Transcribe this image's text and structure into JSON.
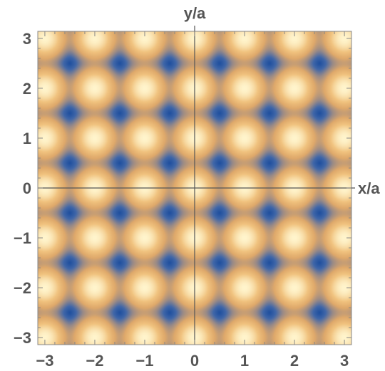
{
  "chart_data": {
    "type": "heatmap",
    "title": "",
    "xlabel": "x/a",
    "ylabel": "y/a",
    "xlim": [
      -3.14159,
      3.14159
    ],
    "ylim": [
      -3.14159,
      3.14159
    ],
    "x_ticks": [
      -3,
      -2,
      -1,
      0,
      1,
      2,
      3
    ],
    "y_ticks": [
      -3,
      -2,
      -1,
      0,
      1,
      2,
      3
    ],
    "x_tick_labels": [
      "−3",
      "−2",
      "−1",
      "0",
      "1",
      "2",
      "3"
    ],
    "y_tick_labels": [
      "−3",
      "−2",
      "−1",
      "0",
      "1",
      "2",
      "3"
    ],
    "axes_cross_at": [
      0,
      0
    ],
    "colormap": {
      "low": "#2a5aa6",
      "mid_low": "#c8a878",
      "mid": "#e8b070",
      "high": "#fff2c8"
    },
    "minima_centers": {
      "x": [
        -2.5,
        -1.5,
        -0.5,
        0.5,
        1.5,
        2.5
      ],
      "y": [
        -2.5,
        -1.5,
        -0.5,
        0.5,
        1.5,
        2.5
      ]
    },
    "pattern_period": 1,
    "grid": false,
    "frame": true
  }
}
